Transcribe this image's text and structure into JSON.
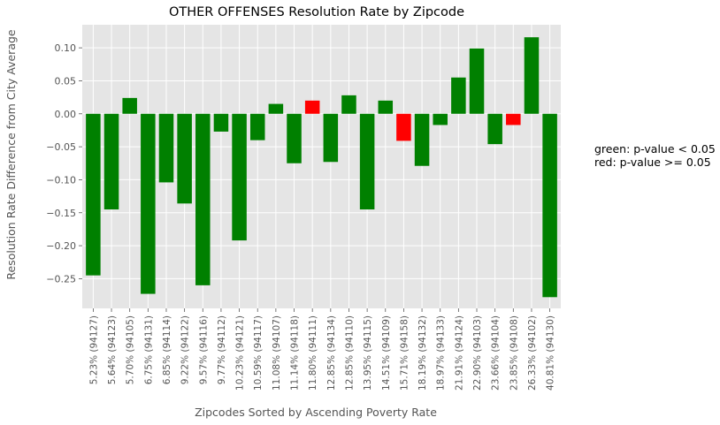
{
  "chart_data": {
    "type": "bar",
    "title": "OTHER OFFENSES Resolution Rate by Zipcode",
    "xlabel": "Zipcodes Sorted by Ascending Poverty Rate",
    "ylabel": "Resolution Rate Difference from City Average",
    "ylim": [
      -0.295,
      0.135
    ],
    "yticks": [
      0.1,
      0.05,
      0.0,
      -0.05,
      -0.1,
      -0.15,
      -0.2,
      -0.25
    ],
    "ytick_labels": [
      "0.10",
      "0.05",
      "0.00",
      "−0.05",
      "−0.10",
      "−0.15",
      "−0.20",
      "−0.25"
    ],
    "grid": true,
    "categories": [
      "5.23% (94127)",
      "5.64% (94123)",
      "5.70% (94105)",
      "6.75% (94131)",
      "6.85% (94114)",
      "9.22% (94122)",
      "9.57% (94116)",
      "9.77% (94112)",
      "10.23% (94121)",
      "10.59% (94117)",
      "11.08% (94107)",
      "11.14% (94118)",
      "11.80% (94111)",
      "12.85% (94134)",
      "12.85% (94110)",
      "13.95% (94115)",
      "14.51% (94109)",
      "15.71% (94158)",
      "18.19% (94132)",
      "18.97% (94133)",
      "21.91% (94124)",
      "22.90% (94103)",
      "23.66% (94104)",
      "23.85% (94108)",
      "26.33% (94102)",
      "40.81% (94130)"
    ],
    "values": [
      -0.245,
      -0.145,
      0.024,
      -0.273,
      -0.104,
      -0.136,
      -0.26,
      -0.027,
      -0.192,
      -0.04,
      0.015,
      -0.075,
      0.02,
      -0.073,
      0.028,
      -0.145,
      0.02,
      -0.041,
      -0.079,
      -0.017,
      0.055,
      0.099,
      -0.046,
      -0.017,
      0.116,
      -0.278
    ],
    "significant": [
      true,
      true,
      true,
      true,
      true,
      true,
      true,
      true,
      true,
      true,
      true,
      true,
      false,
      true,
      true,
      true,
      true,
      false,
      true,
      true,
      true,
      true,
      true,
      false,
      true,
      true
    ],
    "colors": {
      "significant": "#008000",
      "not_significant": "#ff0000",
      "plot_bg": "#e5e5e5",
      "grid": "#ffffff",
      "text": "#555555"
    },
    "legend_text": [
      "green: p-value < 0.05",
      "red: p-value >= 0.05"
    ]
  }
}
